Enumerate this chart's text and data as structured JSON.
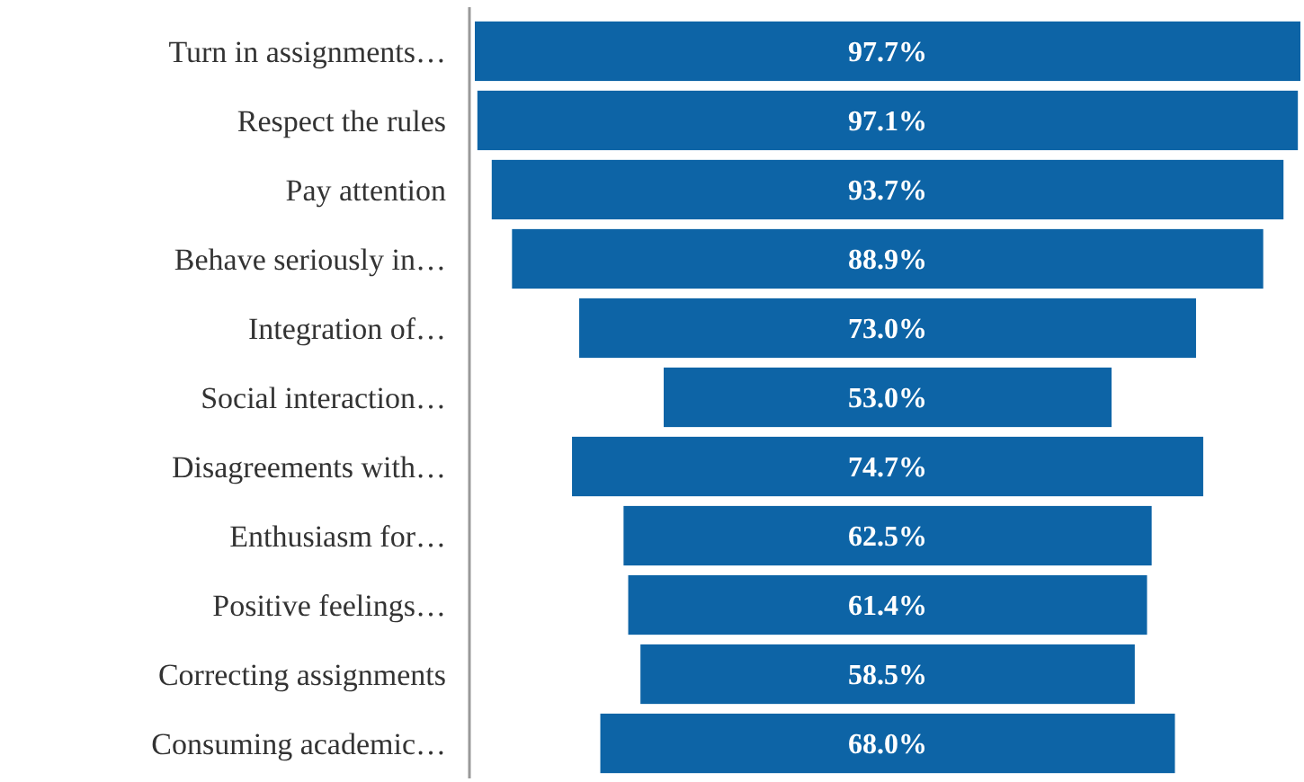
{
  "chart_data": {
    "type": "other",
    "categories": [
      "Turn in assignments…",
      "Respect the rules",
      "Pay attention",
      "Behave seriously in…",
      "Integration of…",
      "Social interaction…",
      "Disagreements with…",
      "Enthusiasm for…",
      "Positive feelings…",
      "Correcting assignments",
      "Consuming academic…"
    ],
    "values": [
      97.7,
      97.1,
      93.7,
      88.9,
      73.0,
      53.0,
      74.7,
      62.5,
      61.4,
      58.5,
      68.0
    ],
    "value_labels": [
      "97.7%",
      "97.1%",
      "93.7%",
      "88.9%",
      "73.0%",
      "53.0%",
      "74.7%",
      "62.5%",
      "61.4%",
      "58.5%",
      "68.0%"
    ],
    "color": "#0d64a6"
  }
}
